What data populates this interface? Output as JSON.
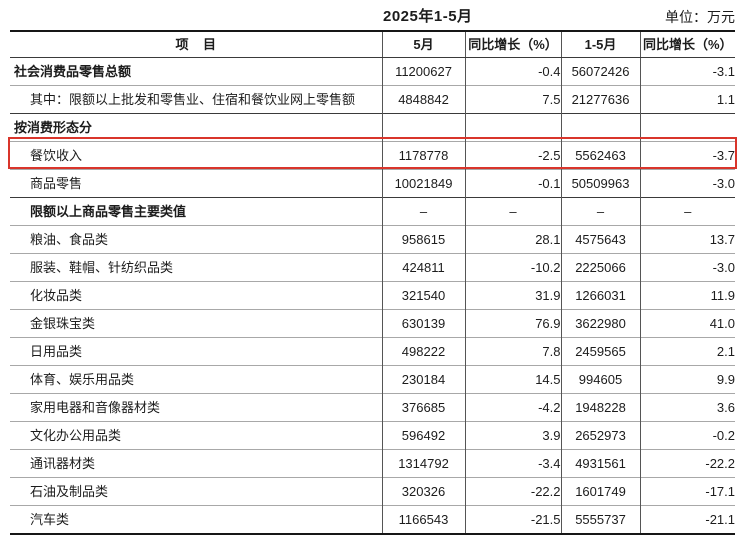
{
  "page": {
    "title": "2025年1-5月",
    "unit_label": "单位：万元",
    "highlight_color": "#d9352b"
  },
  "table": {
    "columns": [
      {
        "label": "项    目"
      },
      {
        "label": "5月"
      },
      {
        "label": "同比增长（%）"
      },
      {
        "label": "1-5月"
      },
      {
        "label": "同比增长（%）"
      }
    ],
    "rows": [
      {
        "label": "社会消费品零售总额",
        "indent": 0,
        "bold": true,
        "divider": "none",
        "highlighted": false,
        "values": [
          "11200627",
          "-0.4",
          "56072426",
          "-3.1"
        ]
      },
      {
        "label": "其中：限额以上批发和零售业、住宿和餐饮业网上零售额",
        "indent": 1,
        "bold": false,
        "divider": "light",
        "highlighted": false,
        "values": [
          "4848842",
          "7.5",
          "21277636",
          "1.1"
        ]
      },
      {
        "label": "按消费形态分",
        "indent": 0,
        "bold": true,
        "divider": "dark",
        "highlighted": false,
        "values": [
          "",
          "",
          "",
          ""
        ]
      },
      {
        "label": "餐饮收入",
        "indent": 1,
        "bold": false,
        "divider": "light",
        "highlighted": true,
        "values": [
          "1178778",
          "-2.5",
          "5562463",
          "-3.7"
        ]
      },
      {
        "label": "商品零售",
        "indent": 1,
        "bold": false,
        "divider": "light",
        "highlighted": false,
        "values": [
          "10021849",
          "-0.1",
          "50509963",
          "-3.0"
        ]
      },
      {
        "label": "限额以上商品零售主要类值",
        "indent": 1,
        "bold": true,
        "divider": "dark",
        "highlighted": false,
        "values": [
          "–",
          "–",
          "–",
          "–"
        ]
      },
      {
        "label": "粮油、食品类",
        "indent": 1,
        "bold": false,
        "divider": "light",
        "highlighted": false,
        "values": [
          "958615",
          "28.1",
          "4575643",
          "13.7"
        ]
      },
      {
        "label": "服装、鞋帽、针纺织品类",
        "indent": 1,
        "bold": false,
        "divider": "light",
        "highlighted": false,
        "values": [
          "424811",
          "-10.2",
          "2225066",
          "-3.0"
        ]
      },
      {
        "label": "化妆品类",
        "indent": 1,
        "bold": false,
        "divider": "light",
        "highlighted": false,
        "values": [
          "321540",
          "31.9",
          "1266031",
          "11.9"
        ]
      },
      {
        "label": "金银珠宝类",
        "indent": 1,
        "bold": false,
        "divider": "light",
        "highlighted": false,
        "values": [
          "630139",
          "76.9",
          "3622980",
          "41.0"
        ]
      },
      {
        "label": "日用品类",
        "indent": 1,
        "bold": false,
        "divider": "light",
        "highlighted": false,
        "values": [
          "498222",
          "7.8",
          "2459565",
          "2.1"
        ]
      },
      {
        "label": "体育、娱乐用品类",
        "indent": 1,
        "bold": false,
        "divider": "light",
        "highlighted": false,
        "values": [
          "230184",
          "14.5",
          "994605",
          "9.9"
        ]
      },
      {
        "label": "家用电器和音像器材类",
        "indent": 1,
        "bold": false,
        "divider": "light",
        "highlighted": false,
        "values": [
          "376685",
          "-4.2",
          "1948228",
          "3.6"
        ]
      },
      {
        "label": "文化办公用品类",
        "indent": 1,
        "bold": false,
        "divider": "light",
        "highlighted": false,
        "values": [
          "596492",
          "3.9",
          "2652973",
          "-0.2"
        ]
      },
      {
        "label": "通讯器材类",
        "indent": 1,
        "bold": false,
        "divider": "light",
        "highlighted": false,
        "values": [
          "1314792",
          "-3.4",
          "4931561",
          "-22.2"
        ]
      },
      {
        "label": "石油及制品类",
        "indent": 1,
        "bold": false,
        "divider": "light",
        "highlighted": false,
        "values": [
          "320326",
          "-22.2",
          "1601749",
          "-17.1"
        ]
      },
      {
        "label": "汽车类",
        "indent": 1,
        "bold": false,
        "divider": "light",
        "highlighted": false,
        "values": [
          "1166543",
          "-21.5",
          "5555737",
          "-21.1"
        ]
      }
    ]
  }
}
